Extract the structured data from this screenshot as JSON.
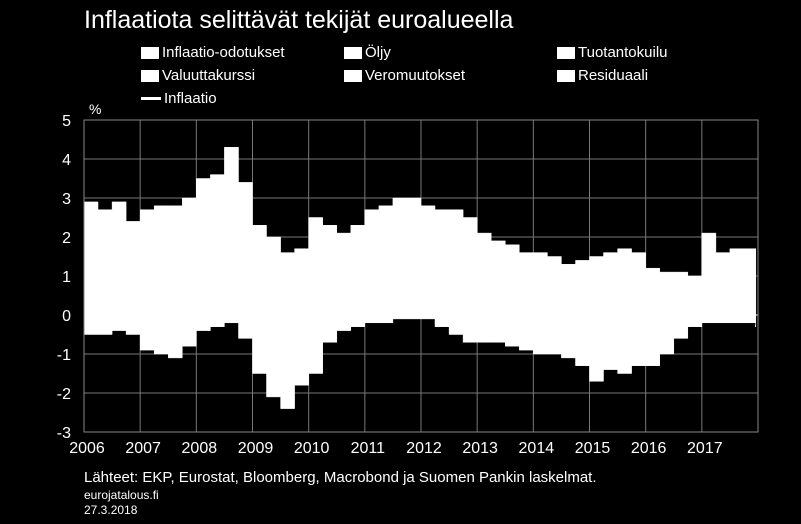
{
  "title": "Inflaatiota selittävät tekijät euroalueella",
  "unit": "%",
  "legend": {
    "items": [
      {
        "label": "Inflaatio-odotukset",
        "kind": "bar"
      },
      {
        "label": "Öljy",
        "kind": "bar"
      },
      {
        "label": "Tuotantokuilu",
        "kind": "bar"
      },
      {
        "label": "Valuuttakurssi",
        "kind": "bar"
      },
      {
        "label": "Veromuutokset",
        "kind": "bar"
      },
      {
        "label": "Residuaali",
        "kind": "bar"
      },
      {
        "label": "Inflaatio",
        "kind": "line"
      }
    ]
  },
  "footer": {
    "source": "Lähteet: EKP, Eurostat, Bloomberg, Macrobond ja Suomen Pankin laskelmat.",
    "site": "eurojatalous.fi",
    "date": "27.3.2018"
  },
  "chart_data": {
    "type": "area",
    "title": "Inflaatiota selittävät tekijät euroalueella",
    "ylabel": "%",
    "ylim": [
      -3,
      5
    ],
    "yticks": [
      5,
      4,
      3,
      2,
      1,
      0,
      -1,
      -2,
      -3
    ],
    "xlim": [
      2006,
      2018
    ],
    "xticks": [
      "2006",
      "2007",
      "2008",
      "2009",
      "2010",
      "2011",
      "2012",
      "2013",
      "2014",
      "2015",
      "2016",
      "2017"
    ],
    "grid": true,
    "series_names": [
      "Inflaatio-odotukset",
      "Öljy",
      "Tuotantokuilu",
      "Valuuttakurssi",
      "Veromuutokset",
      "Residuaali",
      "Inflaatio"
    ],
    "x": [
      2006.0,
      2006.25,
      2006.5,
      2006.75,
      2007.0,
      2007.25,
      2007.5,
      2007.75,
      2008.0,
      2008.25,
      2008.5,
      2008.75,
      2009.0,
      2009.25,
      2009.5,
      2009.75,
      2010.0,
      2010.25,
      2010.5,
      2010.75,
      2011.0,
      2011.25,
      2011.5,
      2011.75,
      2012.0,
      2012.25,
      2012.5,
      2012.75,
      2013.0,
      2013.25,
      2013.5,
      2013.75,
      2014.0,
      2014.25,
      2014.5,
      2014.75,
      2015.0,
      2015.25,
      2015.5,
      2015.75,
      2016.0,
      2016.25,
      2016.5,
      2016.75,
      2017.0,
      2017.25,
      2017.5,
      2017.75,
      2017.95
    ],
    "positive_total": [
      2.9,
      2.7,
      2.9,
      2.4,
      2.7,
      2.8,
      2.8,
      3.0,
      3.5,
      3.6,
      4.3,
      3.4,
      2.3,
      2.0,
      1.6,
      1.7,
      2.5,
      2.3,
      2.1,
      2.3,
      2.7,
      2.8,
      3.0,
      3.0,
      2.8,
      2.7,
      2.7,
      2.5,
      2.1,
      1.9,
      1.8,
      1.6,
      1.6,
      1.5,
      1.3,
      1.4,
      1.5,
      1.6,
      1.7,
      1.6,
      1.2,
      1.1,
      1.1,
      1.0,
      2.1,
      1.6,
      1.7,
      1.7,
      1.7
    ],
    "negative_total": [
      -0.5,
      -0.5,
      -0.4,
      -0.5,
      -0.9,
      -1.0,
      -1.1,
      -0.8,
      -0.4,
      -0.3,
      -0.2,
      -0.6,
      -1.5,
      -2.1,
      -2.4,
      -1.8,
      -1.5,
      -0.7,
      -0.4,
      -0.3,
      -0.2,
      -0.2,
      -0.1,
      -0.1,
      -0.1,
      -0.3,
      -0.5,
      -0.7,
      -0.7,
      -0.7,
      -0.8,
      -0.9,
      -1.0,
      -1.0,
      -1.1,
      -1.3,
      -1.7,
      -1.4,
      -1.5,
      -1.3,
      -1.3,
      -1.0,
      -0.6,
      -0.3,
      -0.2,
      -0.2,
      -0.2,
      -0.2,
      -0.3
    ]
  }
}
